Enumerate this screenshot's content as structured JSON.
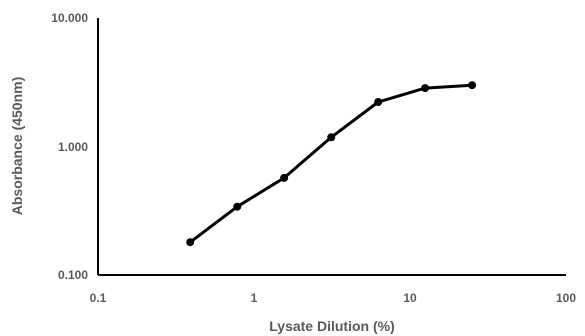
{
  "chart_data": {
    "type": "line",
    "xlabel": "Lysate Dilution (%)",
    "ylabel": "Absorbance (450nm)",
    "x_scale": "log",
    "y_scale": "log",
    "xlim": [
      0.1,
      100
    ],
    "ylim": [
      0.1,
      10
    ],
    "x_ticks": [
      "0.1",
      "1",
      "10",
      "100"
    ],
    "y_ticks": [
      "0.100",
      "1.000",
      "10.000"
    ],
    "grid": false,
    "legend": "none",
    "series": [
      {
        "x": [
          0.39,
          0.78,
          1.56,
          3.125,
          6.25,
          12.5,
          25
        ],
        "y": [
          0.18,
          0.34,
          0.57,
          1.18,
          2.22,
          2.85,
          3.0
        ],
        "color": "#000000"
      }
    ]
  }
}
